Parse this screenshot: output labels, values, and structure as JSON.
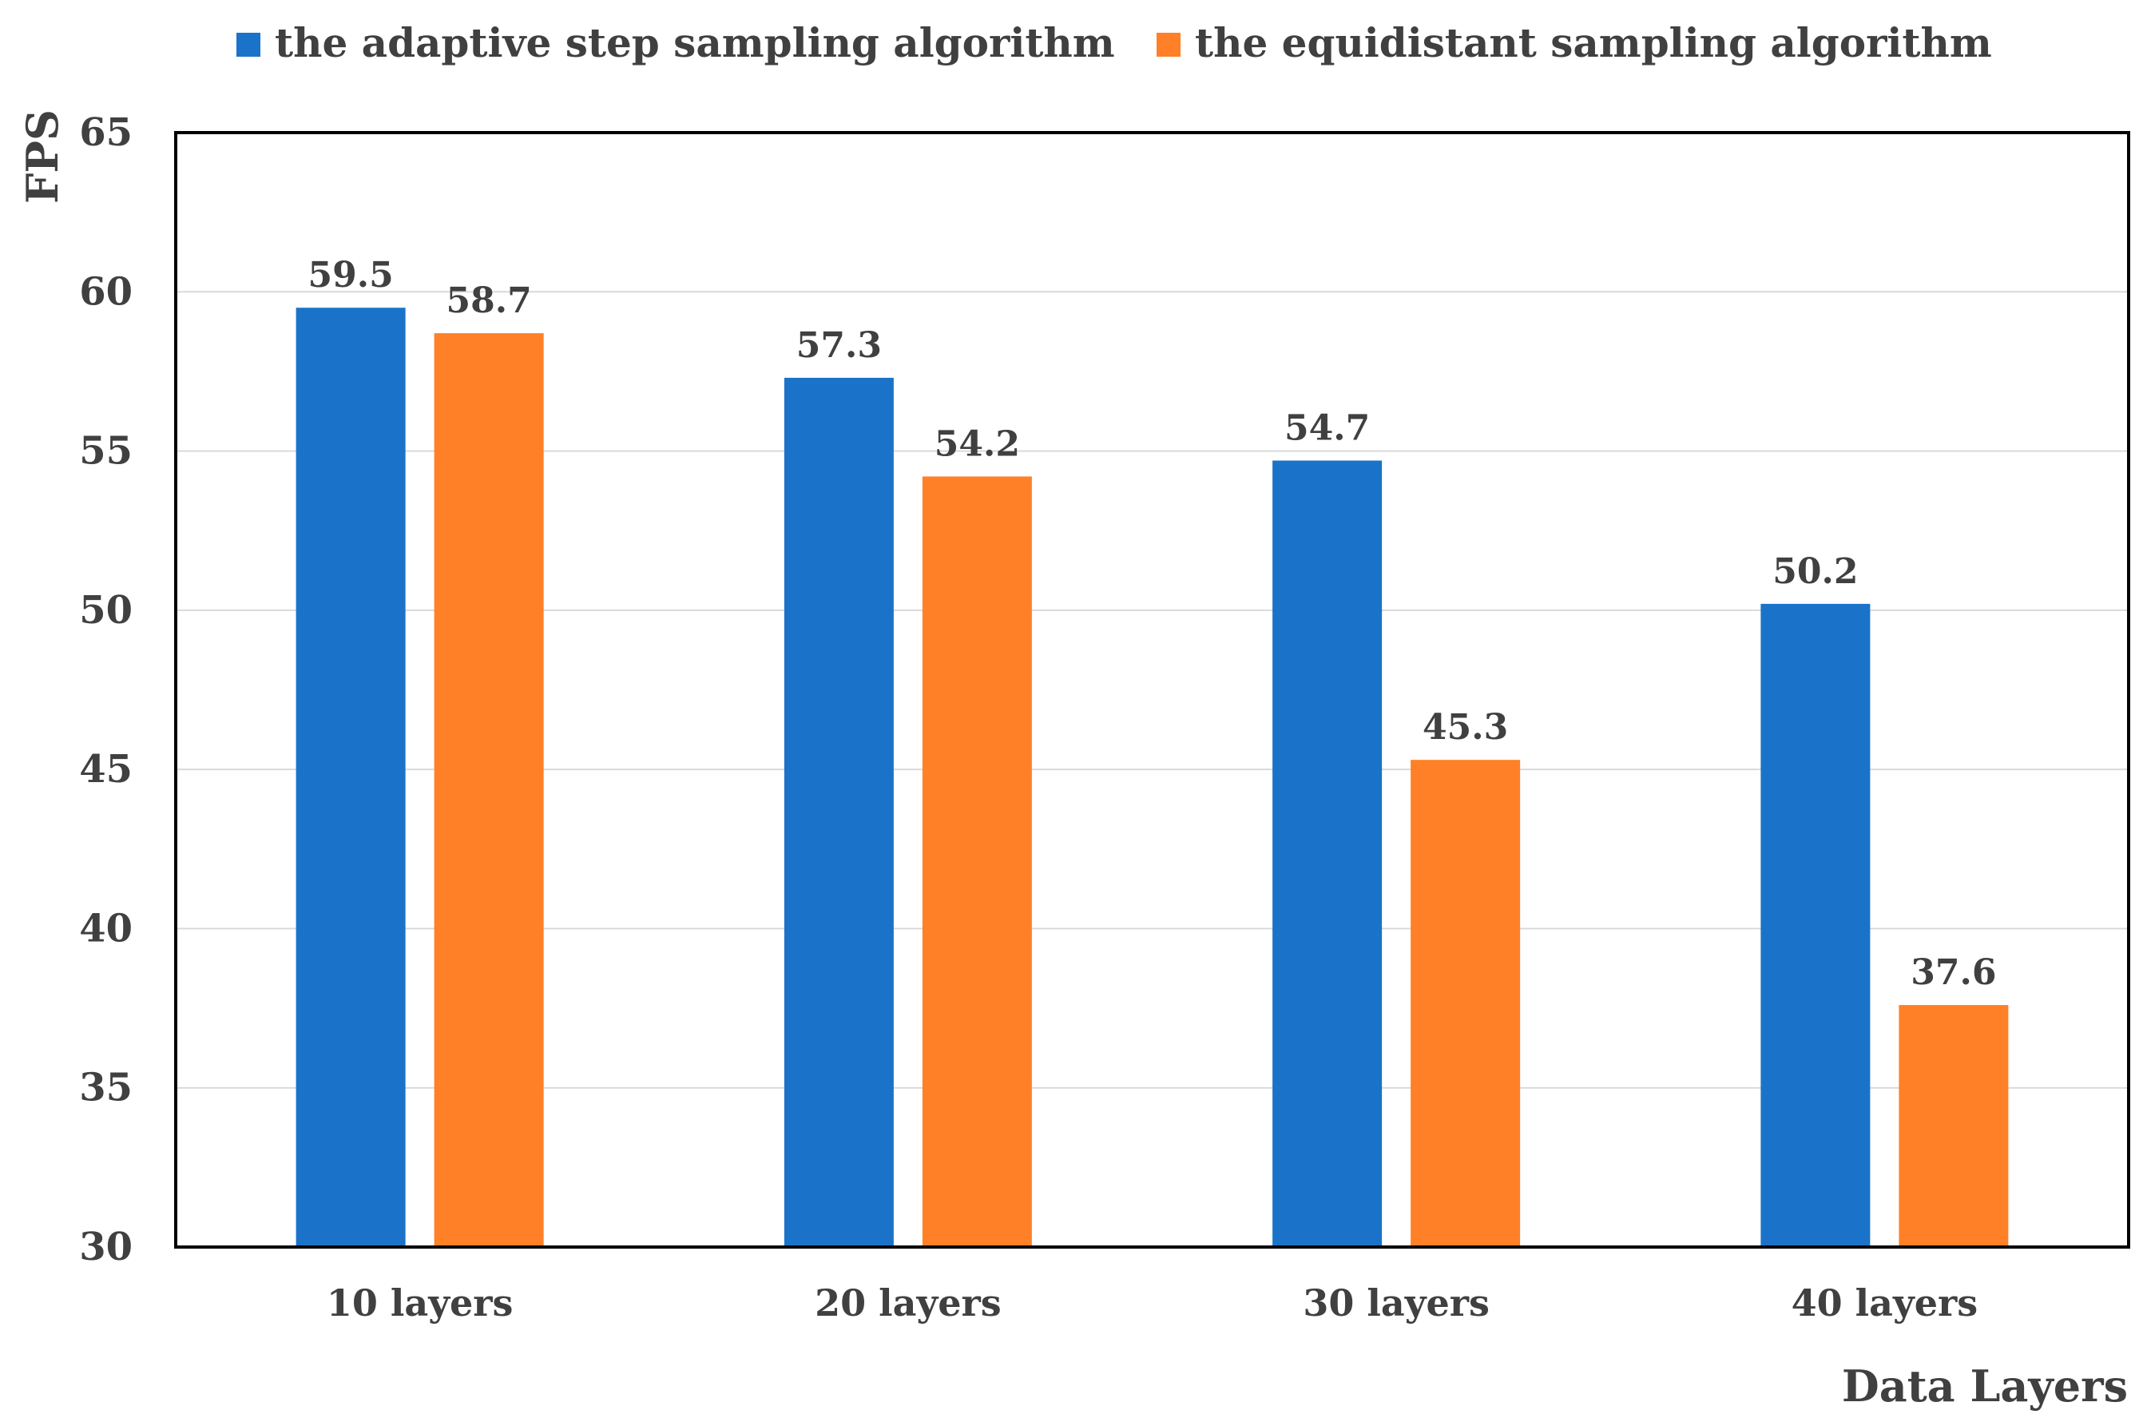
{
  "chart_data": {
    "type": "bar",
    "title": "",
    "xlabel": "Data Layers",
    "ylabel": "FPS",
    "ylim": [
      30,
      65
    ],
    "yticks": [
      30,
      35,
      40,
      45,
      50,
      55,
      60,
      65
    ],
    "grid": true,
    "legend_position": "top",
    "categories": [
      "10 layers",
      "20 layers",
      "30 layers",
      "40 layers"
    ],
    "series": [
      {
        "name": "the adaptive step sampling algorithm",
        "color": "#1a73c8",
        "values": [
          59.5,
          57.3,
          54.7,
          50.2
        ],
        "labels": [
          "59.5",
          "57.3",
          "54.7",
          "50.2"
        ]
      },
      {
        "name": "the equidistant sampling algorithm",
        "color": "#ff8026",
        "values": [
          58.7,
          54.2,
          45.3,
          37.6
        ],
        "labels": [
          "58.7",
          "54.2",
          "45.3",
          "37.6"
        ]
      }
    ]
  }
}
